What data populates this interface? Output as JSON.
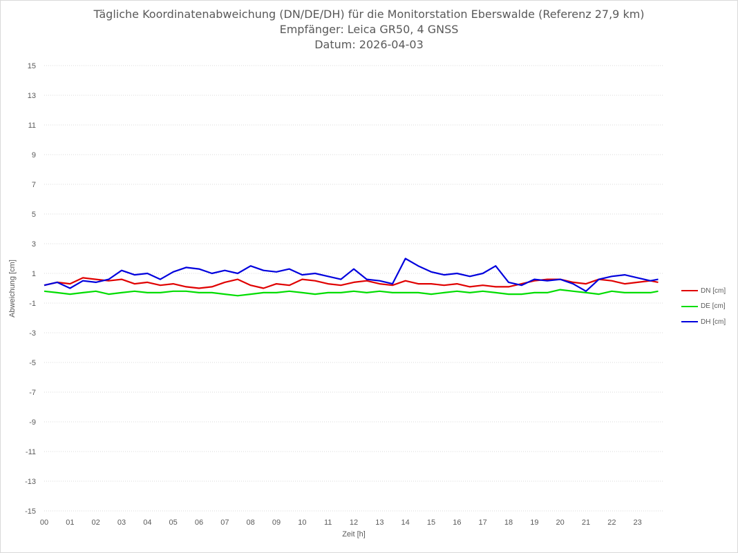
{
  "title_lines": [
    "Tägliche Koordinatenabweichung (DN/DE/DH) für die Monitorstation Eberswalde (Referenz 27,9 km)",
    "Empfänger: Leica GR50, 4 GNSS",
    "Datum: 2026-04-03"
  ],
  "chart_data": {
    "type": "line",
    "title": "Tägliche Koordinatenabweichung (DN/DE/DH) für die Monitorstation Eberswalde (Referenz 27,9 km)",
    "subtitle": [
      "Empfänger: Leica GR50, 4 GNSS",
      "Datum: 2026-04-03"
    ],
    "xlabel": "Zeit [h]",
    "ylabel": "Abweichung [cm]",
    "xlim": [
      0,
      24
    ],
    "ylim": [
      -15,
      15
    ],
    "x_tick_labels": [
      "00",
      "01",
      "02",
      "03",
      "04",
      "05",
      "06",
      "07",
      "08",
      "09",
      "10",
      "11",
      "12",
      "13",
      "14",
      "15",
      "16",
      "17",
      "18",
      "19",
      "20",
      "21",
      "22",
      "23"
    ],
    "y_ticks": [
      15,
      13,
      11,
      9,
      7,
      5,
      3,
      1,
      -1,
      -3,
      -5,
      -7,
      -9,
      -11,
      -13,
      -15
    ],
    "grid": "horizontal dotted",
    "legend_position": "right",
    "x": [
      0,
      0.5,
      1,
      1.5,
      2,
      2.5,
      3,
      3.5,
      4,
      4.5,
      5,
      5.5,
      6,
      6.5,
      7,
      7.5,
      8,
      8.5,
      9,
      9.5,
      10,
      10.5,
      11,
      11.5,
      12,
      12.5,
      13,
      13.5,
      14,
      14.5,
      15,
      15.5,
      16,
      16.5,
      17,
      17.5,
      18,
      18.5,
      19,
      19.5,
      20,
      20.5,
      21,
      21.5,
      22,
      22.5,
      23,
      23.5,
      23.8
    ],
    "series": [
      {
        "name": "DN [cm]",
        "color": "#e00000",
        "values": [
          0.2,
          0.4,
          0.3,
          0.7,
          0.6,
          0.5,
          0.6,
          0.3,
          0.4,
          0.2,
          0.3,
          0.1,
          0.0,
          0.1,
          0.4,
          0.6,
          0.2,
          0.0,
          0.3,
          0.2,
          0.6,
          0.5,
          0.3,
          0.2,
          0.4,
          0.5,
          0.3,
          0.2,
          0.5,
          0.3,
          0.3,
          0.2,
          0.3,
          0.1,
          0.2,
          0.1,
          0.1,
          0.3,
          0.5,
          0.6,
          0.6,
          0.4,
          0.3,
          0.6,
          0.5,
          0.3,
          0.4,
          0.5,
          0.4
        ]
      },
      {
        "name": "DE [cm]",
        "color": "#00dd00",
        "values": [
          -0.2,
          -0.3,
          -0.4,
          -0.3,
          -0.2,
          -0.4,
          -0.3,
          -0.2,
          -0.3,
          -0.3,
          -0.2,
          -0.2,
          -0.3,
          -0.3,
          -0.4,
          -0.5,
          -0.4,
          -0.3,
          -0.3,
          -0.2,
          -0.3,
          -0.4,
          -0.3,
          -0.3,
          -0.2,
          -0.3,
          -0.2,
          -0.3,
          -0.3,
          -0.3,
          -0.4,
          -0.3,
          -0.2,
          -0.3,
          -0.2,
          -0.3,
          -0.4,
          -0.4,
          -0.3,
          -0.3,
          -0.1,
          -0.2,
          -0.3,
          -0.4,
          -0.2,
          -0.3,
          -0.3,
          -0.3,
          -0.2
        ]
      },
      {
        "name": "DH [cm]",
        "color": "#0000dd",
        "values": [
          0.2,
          0.4,
          0.0,
          0.5,
          0.4,
          0.6,
          1.2,
          0.9,
          1.0,
          0.6,
          1.1,
          1.4,
          1.3,
          1.0,
          1.2,
          1.0,
          1.5,
          1.2,
          1.1,
          1.3,
          0.9,
          1.0,
          0.8,
          0.6,
          1.3,
          0.6,
          0.5,
          0.3,
          2.0,
          1.5,
          1.1,
          0.9,
          1.0,
          0.8,
          1.0,
          1.5,
          0.4,
          0.2,
          0.6,
          0.5,
          0.6,
          0.3,
          -0.2,
          0.6,
          0.8,
          0.9,
          0.7,
          0.5,
          0.6
        ]
      }
    ]
  }
}
